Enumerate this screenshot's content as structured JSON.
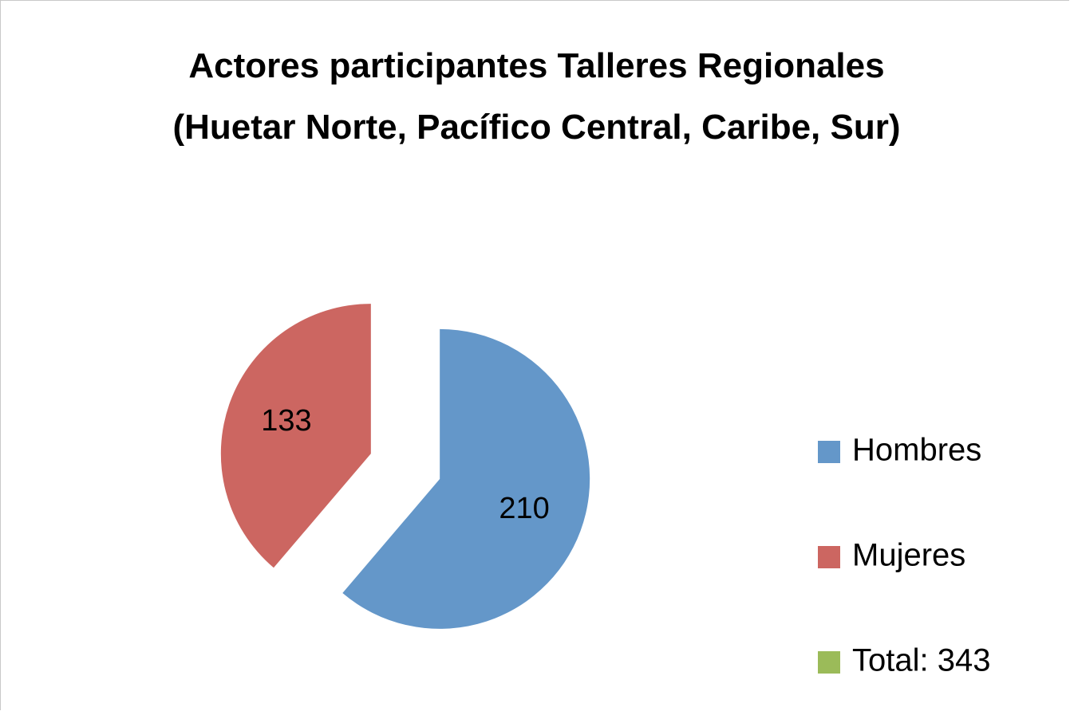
{
  "chart_data": {
    "type": "pie",
    "title": "Actores participantes Talleres Regionales (Huetar Norte, Pacífico Central, Caribe, Sur)",
    "categories": [
      "Hombres",
      "Mujeres",
      "Total: 343"
    ],
    "values": [
      210,
      133,
      0
    ],
    "colors": [
      "#6497c9",
      "#cc6661",
      "#9bbb59"
    ],
    "exploded": true,
    "legend": "right"
  }
}
